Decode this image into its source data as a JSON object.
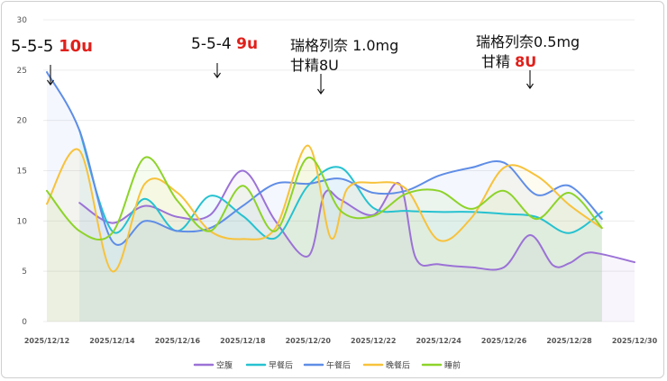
{
  "chart_data": {
    "type": "line",
    "title": "",
    "xlabel": "",
    "ylabel": "",
    "ylim": [
      0,
      30
    ],
    "yticks": [
      0,
      5,
      10,
      15,
      20,
      25,
      30
    ],
    "xlim": [
      "2025/12/12",
      "2025/12/30"
    ],
    "xtick_labels": [
      "2025/12/12",
      "2025/12/14",
      "2025/12/16",
      "2025/12/18",
      "2025/12/20",
      "2025/12/22",
      "2025/12/24",
      "2025/12/26",
      "2025/12/28",
      "2025/12/30"
    ],
    "legend_position": "bottom",
    "grid": true,
    "series": [
      {
        "name": "空腹",
        "color": "#9b72d6",
        "x": [
          13,
          14,
          15,
          16,
          17,
          18,
          19,
          20,
          20.5,
          21,
          22,
          22.8,
          23.3,
          24,
          25,
          26,
          26.8,
          27.5,
          28,
          28.5,
          29,
          30
        ],
        "y": [
          11.8,
          9.8,
          11.5,
          10.4,
          10.6,
          15.0,
          10.0,
          6.5,
          12.7,
          12.1,
          10.6,
          13.7,
          6.3,
          5.7,
          5.4,
          5.4,
          8.6,
          5.6,
          5.8,
          6.8,
          6.7,
          5.9
        ]
      },
      {
        "name": "早餐后",
        "color": "#26c2d0",
        "x": [
          13,
          14,
          15,
          16,
          17,
          18,
          19,
          20,
          21,
          22,
          23,
          24,
          25,
          26,
          27,
          28,
          29
        ],
        "y": [
          19.0,
          9.0,
          12.2,
          9.0,
          12.5,
          10.5,
          8.3,
          13.5,
          15.3,
          11.3,
          11.0,
          10.9,
          10.9,
          10.7,
          10.4,
          8.8,
          10.9
        ]
      },
      {
        "name": "午餐后",
        "color": "#5f8de6",
        "x": [
          12,
          13,
          14,
          15,
          16,
          17,
          18,
          19,
          20,
          21,
          22,
          23,
          24,
          25,
          26,
          27,
          28,
          29
        ],
        "y": [
          24.8,
          19.0,
          8.0,
          10.0,
          9.0,
          9.3,
          11.5,
          13.7,
          13.7,
          14.2,
          12.8,
          13.0,
          14.5,
          15.3,
          15.8,
          12.6,
          13.5,
          10.2
        ]
      },
      {
        "name": "晚餐后",
        "color": "#f7c23b",
        "x": [
          12,
          13,
          14,
          15,
          16,
          17,
          18,
          19,
          20,
          20.7,
          21.2,
          22,
          23,
          24,
          25,
          26,
          27,
          28,
          29
        ],
        "y": [
          11.7,
          17.0,
          5.0,
          13.7,
          12.8,
          9.0,
          8.2,
          9.3,
          17.5,
          8.3,
          13.2,
          13.8,
          13.2,
          8.1,
          10.3,
          15.3,
          14.5,
          11.6,
          9.3
        ]
      },
      {
        "name": "睡前",
        "color": "#8dd32a",
        "x": [
          12,
          13,
          14,
          15,
          16,
          17,
          18,
          19,
          20,
          21,
          22,
          23,
          24,
          25,
          26,
          27,
          28,
          29
        ],
        "y": [
          13.0,
          9.0,
          8.8,
          16.3,
          12.0,
          9.0,
          13.5,
          9.0,
          16.3,
          11.0,
          10.5,
          12.7,
          13.0,
          11.2,
          13.0,
          10.2,
          12.8,
          9.3
        ]
      }
    ]
  },
  "annotations": {
    "a1": {
      "text": "5-5-5 ",
      "red": "10u"
    },
    "a2": {
      "text": "5-5-4 ",
      "red": "9u"
    },
    "a3": {
      "line1": "瑞格列奈 1.0mg",
      "line2": "甘精8U"
    },
    "a4": {
      "line1": "瑞格列奈0.5mg",
      "line2": "甘精 ",
      "red": "8U"
    }
  }
}
